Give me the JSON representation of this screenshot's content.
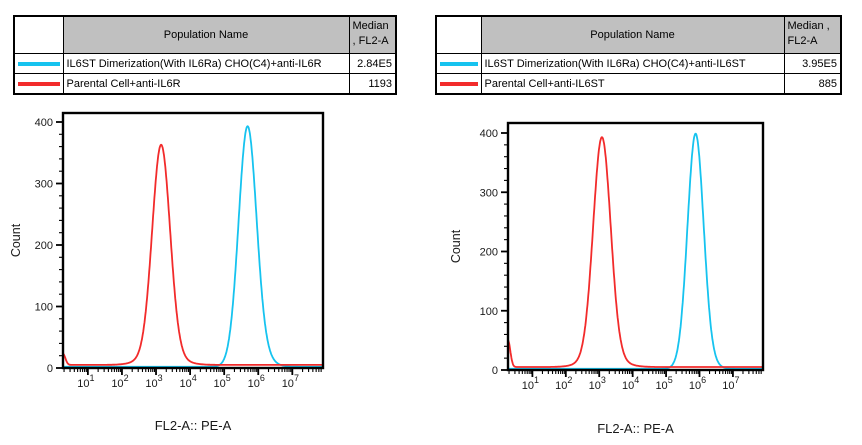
{
  "colors": {
    "cyan_series": "#16C3EF",
    "red_series": "#F22B2B",
    "header_gray": "#C0C0C0",
    "axis_black": "#000000"
  },
  "left_panel": {
    "legend": {
      "population_header": "Population Name",
      "median_header_lines": [
        "Median",
        ", FL2-A"
      ],
      "rows": [
        {
          "name": "IL6ST Dimerization(With IL6Ra) CHO(C4)+anti-IL6R",
          "median": "2.84E5"
        },
        {
          "name": "Parental Cell+anti-IL6R",
          "median": "1193"
        }
      ]
    }
  },
  "right_panel": {
    "legend": {
      "population_header": "Population Name",
      "median_header_lines": [
        "Median ,",
        "FL2-A"
      ],
      "rows": [
        {
          "name": "IL6ST Dimerization(With IL6Ra) CHO(C4)+anti-IL6ST",
          "median": "3.95E5"
        },
        {
          "name": "Parental Cell+anti-IL6ST",
          "median": "885"
        }
      ]
    }
  },
  "chart_data": [
    {
      "type": "line",
      "subtype": "flow-cytometry-histogram-overlay",
      "title": "",
      "xlabel": "FL2-A:: PE-A",
      "ylabel": "Count",
      "x_scale": "log10",
      "x_log_range": [
        0.27,
        7.9
      ],
      "x_decade_ticks": [
        1,
        2,
        3,
        4,
        5,
        6,
        7
      ],
      "ylim": [
        0,
        400
      ],
      "y_major_step": 100,
      "y_minor_step": 20,
      "grid": false,
      "legend_position": "table-above",
      "series": [
        {
          "name": "IL6ST Dimerization(With IL6Ra) CHO(C4)+anti-IL6R",
          "color": "#16C3EF",
          "median_fl2a": "2.84E5",
          "peak": {
            "log10_x": 5.68,
            "count": 390
          },
          "baseline_count": 2,
          "components": [
            {
              "mu": 5.68,
              "sigma": 0.26,
              "amp": 368
            },
            {
              "mu": 5.9,
              "sigma": 0.35,
              "amp": 28
            }
          ]
        },
        {
          "name": "Parental Cell+anti-IL6R",
          "color": "#F22B2B",
          "median_fl2a": "1193",
          "peak": {
            "log10_x": 3.15,
            "count": 360
          },
          "baseline_count": 5,
          "components": [
            {
              "mu": 3.15,
              "sigma": 0.26,
              "amp": 340
            },
            {
              "mu": 3.15,
              "sigma": 0.5,
              "amp": 18
            },
            {
              "mu": 0.27,
              "sigma": 0.07,
              "amp": 18
            }
          ]
        }
      ]
    },
    {
      "type": "line",
      "subtype": "flow-cytometry-histogram-overlay",
      "title": "",
      "xlabel": "FL2-A:: PE-A",
      "ylabel": "Count",
      "x_scale": "log10",
      "x_log_range": [
        0.27,
        7.9
      ],
      "x_decade_ticks": [
        1,
        2,
        3,
        4,
        5,
        6,
        7
      ],
      "ylim": [
        0,
        400
      ],
      "y_major_step": 100,
      "y_minor_step": 20,
      "grid": false,
      "legend_position": "table-above",
      "series": [
        {
          "name": "IL6ST Dimerization(With IL6Ra) CHO(C4)+anti-IL6ST",
          "color": "#16C3EF",
          "median_fl2a": "3.95E5",
          "peak": {
            "log10_x": 5.88,
            "count": 395
          },
          "baseline_count": 2,
          "components": [
            {
              "mu": 5.88,
              "sigma": 0.24,
              "amp": 380
            },
            {
              "mu": 6.0,
              "sigma": 0.33,
              "amp": 18
            }
          ]
        },
        {
          "name": "Parental Cell+anti-IL6ST",
          "color": "#F22B2B",
          "median_fl2a": "885",
          "peak": {
            "log10_x": 3.08,
            "count": 390
          },
          "baseline_count": 5,
          "components": [
            {
              "mu": 3.08,
              "sigma": 0.26,
              "amp": 370
            },
            {
              "mu": 3.1,
              "sigma": 0.5,
              "amp": 18
            },
            {
              "mu": 0.27,
              "sigma": 0.07,
              "amp": 45
            }
          ]
        }
      ]
    }
  ]
}
